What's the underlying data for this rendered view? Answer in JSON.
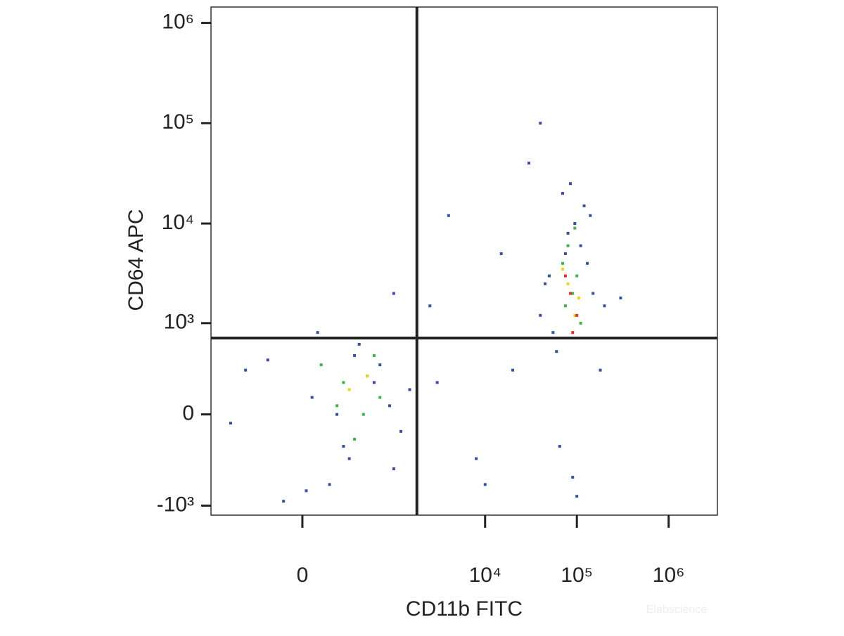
{
  "chart_data": {
    "type": "scatter",
    "x_label": "CD11b FITC",
    "y_label": "CD64 APC",
    "watermark": "Elabscience",
    "scale": "biexponential",
    "x_cofactor": 204,
    "y_cofactor": 250,
    "xlim": [
      -1000,
      3400000
    ],
    "ylim": [
      -1250,
      1440000
    ],
    "xticks": [
      0,
      {
        "value": 10000,
        "label": "10⁴"
      },
      {
        "value": 100000,
        "label": "10⁵"
      },
      {
        "value": 1000000,
        "label": "10⁶"
      }
    ],
    "yticks": [
      {
        "value": -1000,
        "label": "-10³"
      },
      0,
      {
        "value": 1000,
        "label": "10³"
      },
      {
        "value": 10000,
        "label": "10⁴"
      },
      {
        "value": 100000,
        "label": "10⁵"
      },
      {
        "value": 1000000,
        "label": "10⁶"
      }
    ],
    "gates": {
      "x": 1800,
      "y": 700
    },
    "series": [
      {
        "color": "#3a4fa0",
        "x": [
          50,
          300,
          -200,
          600,
          150,
          900,
          -400,
          1200,
          400,
          80,
          -100,
          700,
          250,
          1500,
          -600,
          350,
          1000,
          500,
          20,
          200,
          50000,
          80000,
          120000,
          60000,
          150000,
          90000,
          40000,
          70000,
          110000,
          200000,
          65000,
          95000,
          130000,
          55000,
          85000,
          180000,
          75000,
          100000,
          45000,
          140000,
          3000,
          8000,
          15000,
          5000,
          30000,
          2500,
          20000,
          1000,
          10000,
          40000,
          300000,
          4000
        ],
        "values": [
          100,
          -300,
          400,
          200,
          -600,
          50,
          300,
          -100,
          600,
          800,
          -900,
          350,
          -200,
          150,
          -50,
          450,
          -400,
          250,
          -700,
          0,
          3000,
          8000,
          15000,
          500,
          2000,
          -500,
          1200,
          20000,
          6000,
          1500,
          -200,
          10000,
          4000,
          800,
          25000,
          300,
          5000,
          -800,
          2500,
          12000,
          200,
          -300,
          5000,
          700,
          40000,
          1500,
          300,
          2000,
          -600,
          100000,
          1800,
          12000
        ]
      },
      {
        "color": "#3fb34a",
        "x": [
          250,
          450,
          100,
          700,
          350,
          600,
          200,
          70000,
          90000,
          110000,
          80000,
          60000,
          100000,
          75000,
          95000
        ],
        "values": [
          200,
          0,
          350,
          100,
          -150,
          450,
          50,
          4000,
          2000,
          1000,
          6000,
          700,
          3000,
          1500,
          9000
        ]
      },
      {
        "color": "#e8d422",
        "x": [
          300,
          500,
          80000,
          95000,
          70000,
          105000,
          85000
        ],
        "values": [
          150,
          250,
          2500,
          1200,
          3500,
          1800,
          700
        ]
      },
      {
        "color": "#e0321e",
        "x": [
          85000,
          100000,
          75000,
          90000
        ],
        "values": [
          2000,
          1200,
          3000,
          800
        ]
      }
    ]
  }
}
